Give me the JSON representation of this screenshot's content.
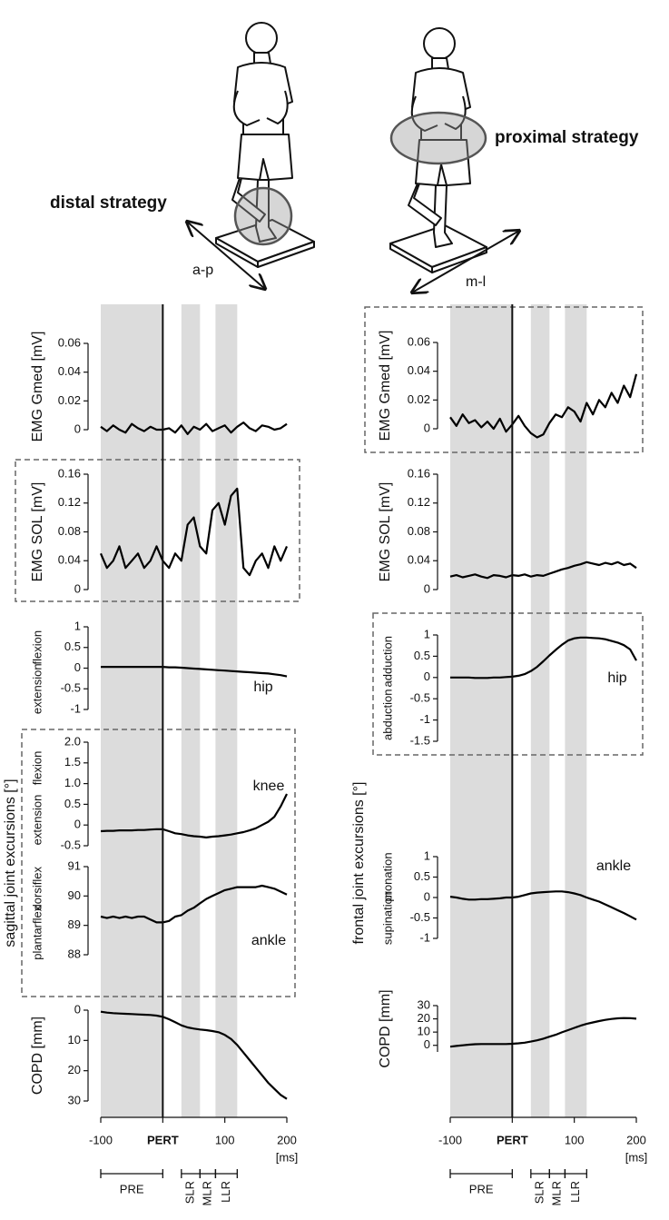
{
  "figure": {
    "left_strategy": "distal strategy",
    "left_direction": "a-p",
    "right_strategy": "proximal strategy",
    "right_direction": "m-l",
    "left_group": "sagittal joint excursions [°]",
    "right_group": "frontal joint excursions [°]",
    "phases": [
      {
        "label": "PRE",
        "range": [
          -100,
          0
        ],
        "shaded": true
      },
      {
        "label": "SLR",
        "range": [
          30,
          60
        ],
        "shaded": true
      },
      {
        "label": "MLR",
        "range": [
          60,
          85
        ],
        "shaded": false
      },
      {
        "label": "LLR",
        "range": [
          85,
          120
        ],
        "shaded": true
      }
    ]
  },
  "chart_data": [
    {
      "type": "line",
      "ylabel": "EMG Gmed [mV]",
      "color": "#000000",
      "x": [
        -100,
        -90,
        -80,
        -70,
        -60,
        -50,
        -40,
        -30,
        -20,
        -10,
        0,
        10,
        20,
        30,
        40,
        50,
        60,
        70,
        80,
        90,
        100,
        110,
        120,
        130,
        140,
        150,
        160,
        170,
        180,
        190,
        200
      ],
      "values": [
        0.002,
        -0.001,
        0.003,
        0.0,
        -0.002,
        0.004,
        0.001,
        -0.001,
        0.002,
        0.0,
        0.0,
        0.001,
        -0.002,
        0.003,
        -0.003,
        0.002,
        0.0,
        0.004,
        -0.001,
        0.001,
        0.003,
        -0.002,
        0.002,
        0.005,
        0.001,
        -0.001,
        0.003,
        0.002,
        0.0,
        0.001,
        0.004
      ],
      "xlim": [
        -100,
        200
      ],
      "ylim": [
        0,
        0.06
      ],
      "yticks": [
        0,
        0.02,
        0.04,
        0.06
      ]
    },
    {
      "type": "line",
      "ylabel": "EMG SOL [mV]",
      "color": "#000000",
      "x": [
        -100,
        -90,
        -80,
        -70,
        -60,
        -50,
        -40,
        -30,
        -20,
        -10,
        0,
        10,
        20,
        30,
        40,
        50,
        60,
        70,
        80,
        90,
        100,
        110,
        120,
        130,
        140,
        150,
        160,
        170,
        180,
        190,
        200
      ],
      "values": [
        0.05,
        0.03,
        0.04,
        0.06,
        0.03,
        0.04,
        0.05,
        0.03,
        0.04,
        0.06,
        0.04,
        0.03,
        0.05,
        0.04,
        0.09,
        0.1,
        0.06,
        0.05,
        0.11,
        0.12,
        0.09,
        0.13,
        0.14,
        0.03,
        0.02,
        0.04,
        0.05,
        0.03,
        0.06,
        0.04,
        0.06
      ],
      "xlim": [
        -100,
        200
      ],
      "ylim": [
        0,
        0.16
      ],
      "yticks": [
        0,
        0.04,
        0.08,
        0.12,
        0.16
      ]
    },
    {
      "type": "line",
      "annotation": "hip",
      "ylabel_upper": "flexion",
      "ylabel_lower": "extension",
      "color": "#000000",
      "x": [
        -100,
        -90,
        -80,
        -70,
        -60,
        -50,
        -40,
        -30,
        -20,
        -10,
        0,
        10,
        20,
        30,
        40,
        50,
        60,
        70,
        80,
        90,
        100,
        110,
        120,
        130,
        140,
        150,
        160,
        170,
        180,
        190,
        200
      ],
      "values": [
        0.03,
        0.03,
        0.03,
        0.03,
        0.03,
        0.03,
        0.03,
        0.03,
        0.03,
        0.03,
        0.03,
        0.02,
        0.02,
        0.01,
        0.0,
        -0.01,
        -0.02,
        -0.03,
        -0.04,
        -0.05,
        -0.06,
        -0.07,
        -0.08,
        -0.09,
        -0.1,
        -0.11,
        -0.12,
        -0.13,
        -0.15,
        -0.17,
        -0.2
      ],
      "xlim": [
        -100,
        200
      ],
      "ylim": [
        -1,
        1
      ],
      "yticks": [
        -1,
        -0.5,
        0,
        0.5,
        1
      ]
    },
    {
      "type": "line",
      "annotation": "knee",
      "ylabel_upper": "flexion",
      "ylabel_lower": "extension",
      "color": "#000000",
      "x": [
        -100,
        -90,
        -80,
        -70,
        -60,
        -50,
        -40,
        -30,
        -20,
        -10,
        0,
        10,
        20,
        30,
        40,
        50,
        60,
        70,
        80,
        90,
        100,
        110,
        120,
        130,
        140,
        150,
        160,
        170,
        180,
        190,
        200
      ],
      "values": [
        -0.15,
        -0.14,
        -0.14,
        -0.13,
        -0.13,
        -0.13,
        -0.12,
        -0.12,
        -0.11,
        -0.1,
        -0.1,
        -0.15,
        -0.2,
        -0.22,
        -0.25,
        -0.27,
        -0.28,
        -0.3,
        -0.28,
        -0.27,
        -0.25,
        -0.23,
        -0.2,
        -0.17,
        -0.13,
        -0.08,
        0.0,
        0.08,
        0.2,
        0.45,
        0.75
      ],
      "xlim": [
        -100,
        200
      ],
      "ylim": [
        -0.5,
        2
      ],
      "yticks": [
        -0.5,
        0,
        0.5,
        {
          "value": 1,
          "label": "1.0"
        },
        1.5,
        {
          "value": 2,
          "label": "2.0"
        }
      ]
    },
    {
      "type": "line",
      "annotation": "ankle",
      "ylabel_upper": "dorsiflex",
      "ylabel_lower": "plantarflex",
      "color": "#000000",
      "x": [
        -100,
        -90,
        -80,
        -70,
        -60,
        -50,
        -40,
        -30,
        -20,
        -10,
        0,
        10,
        20,
        30,
        40,
        50,
        60,
        70,
        80,
        90,
        100,
        110,
        120,
        130,
        140,
        150,
        160,
        170,
        180,
        190,
        200
      ],
      "values": [
        89.3,
        89.25,
        89.3,
        89.25,
        89.3,
        89.25,
        89.3,
        89.3,
        89.2,
        89.1,
        89.1,
        89.15,
        89.3,
        89.35,
        89.5,
        89.6,
        89.75,
        89.9,
        90.0,
        90.1,
        90.2,
        90.25,
        90.3,
        90.3,
        90.3,
        90.3,
        90.35,
        90.3,
        90.25,
        90.15,
        90.05
      ],
      "xlim": [
        -100,
        200
      ],
      "ylim": [
        88,
        91
      ],
      "yticks": [
        88,
        89,
        90,
        91
      ]
    },
    {
      "type": "line",
      "ylabel": "COPD [mm]",
      "color": "#000000",
      "x": [
        -100,
        -90,
        -80,
        -70,
        -60,
        -50,
        -40,
        -30,
        -20,
        -10,
        0,
        10,
        20,
        30,
        40,
        50,
        60,
        70,
        80,
        90,
        100,
        110,
        120,
        130,
        140,
        150,
        160,
        170,
        180,
        190,
        200
      ],
      "values": [
        0.5,
        0.8,
        1,
        1.1,
        1.2,
        1.3,
        1.4,
        1.5,
        1.6,
        1.8,
        2.2,
        3,
        4,
        5,
        5.7,
        6.1,
        6.4,
        6.6,
        6.9,
        7.3,
        8.2,
        9.5,
        11.5,
        14,
        16.5,
        19,
        21.5,
        24,
        26,
        28,
        29.3
      ],
      "xlim": [
        -100,
        200
      ],
      "ylim": [
        30,
        0
      ],
      "yticks": [
        0,
        10,
        20,
        30
      ],
      "xticks": [
        -100,
        {
          "value": 0,
          "label": "PERT"
        },
        100,
        200
      ],
      "xlabel": "[ms]"
    },
    {
      "type": "line",
      "ylabel": "EMG Gmed [mV]",
      "color": "#000000",
      "x": [
        -100,
        -90,
        -80,
        -70,
        -60,
        -50,
        -40,
        -30,
        -20,
        -10,
        0,
        10,
        20,
        30,
        40,
        50,
        60,
        70,
        80,
        90,
        100,
        110,
        120,
        130,
        140,
        150,
        160,
        170,
        180,
        190,
        200
      ],
      "values": [
        0.008,
        0.002,
        0.01,
        0.004,
        0.006,
        0.001,
        0.005,
        0.0,
        0.007,
        -0.002,
        0.003,
        0.009,
        0.002,
        -0.003,
        -0.006,
        -0.004,
        0.004,
        0.01,
        0.008,
        0.015,
        0.012,
        0.005,
        0.018,
        0.01,
        0.02,
        0.015,
        0.025,
        0.018,
        0.03,
        0.022,
        0.038
      ],
      "xlim": [
        -100,
        200
      ],
      "ylim": [
        0,
        0.06
      ],
      "yticks": [
        0,
        0.02,
        0.04,
        0.06
      ]
    },
    {
      "type": "line",
      "ylabel": "EMG SOL [mV]",
      "color": "#000000",
      "x": [
        -100,
        -90,
        -80,
        -70,
        -60,
        -50,
        -40,
        -30,
        -20,
        -10,
        0,
        10,
        20,
        30,
        40,
        50,
        60,
        70,
        80,
        90,
        100,
        110,
        120,
        130,
        140,
        150,
        160,
        170,
        180,
        190,
        200
      ],
      "values": [
        0.018,
        0.02,
        0.017,
        0.019,
        0.021,
        0.018,
        0.016,
        0.02,
        0.019,
        0.017,
        0.02,
        0.019,
        0.021,
        0.018,
        0.02,
        0.019,
        0.022,
        0.025,
        0.028,
        0.03,
        0.033,
        0.035,
        0.038,
        0.036,
        0.034,
        0.037,
        0.035,
        0.038,
        0.034,
        0.036,
        0.03
      ],
      "xlim": [
        -100,
        200
      ],
      "ylim": [
        0,
        0.16
      ],
      "yticks": [
        0,
        0.04,
        0.08,
        0.12,
        0.16
      ]
    },
    {
      "type": "line",
      "annotation": "hip",
      "ylabel_upper": "adduction",
      "ylabel_lower": "abduction",
      "color": "#000000",
      "x": [
        -100,
        -90,
        -80,
        -70,
        -60,
        -50,
        -40,
        -30,
        -20,
        -10,
        0,
        10,
        20,
        30,
        40,
        50,
        60,
        70,
        80,
        90,
        100,
        110,
        120,
        130,
        140,
        150,
        160,
        170,
        180,
        190,
        200
      ],
      "values": [
        0,
        0,
        0,
        0,
        -0.01,
        -0.01,
        -0.01,
        0,
        0,
        0.01,
        0.02,
        0.04,
        0.08,
        0.15,
        0.25,
        0.38,
        0.52,
        0.65,
        0.77,
        0.87,
        0.92,
        0.94,
        0.94,
        0.93,
        0.92,
        0.9,
        0.86,
        0.82,
        0.76,
        0.66,
        0.4
      ],
      "xlim": [
        -100,
        200
      ],
      "ylim": [
        -1.5,
        1
      ],
      "yticks": [
        -1.5,
        -1,
        -0.5,
        0,
        0.5,
        1
      ]
    },
    {
      "type": "line",
      "annotation": "ankle",
      "ylabel_upper": "pronation",
      "ylabel_lower": "supination",
      "color": "#000000",
      "x": [
        -100,
        -90,
        -80,
        -70,
        -60,
        -50,
        -40,
        -30,
        -20,
        -10,
        0,
        10,
        20,
        30,
        40,
        50,
        60,
        70,
        80,
        90,
        100,
        110,
        120,
        130,
        140,
        150,
        160,
        170,
        180,
        190,
        200
      ],
      "values": [
        0.02,
        0.0,
        -0.03,
        -0.05,
        -0.05,
        -0.04,
        -0.04,
        -0.03,
        -0.02,
        0,
        0,
        0.02,
        0.06,
        0.1,
        0.12,
        0.13,
        0.14,
        0.15,
        0.15,
        0.13,
        0.1,
        0.06,
        0,
        -0.05,
        -0.1,
        -0.17,
        -0.24,
        -0.31,
        -0.38,
        -0.46,
        -0.54
      ],
      "xlim": [
        -100,
        200
      ],
      "ylim": [
        -1,
        1
      ],
      "yticks": [
        -1,
        -0.5,
        0,
        0.5,
        1
      ]
    },
    {
      "type": "line",
      "ylabel": "COPD [mm]",
      "color": "#000000",
      "x": [
        -100,
        -90,
        -80,
        -70,
        -60,
        -50,
        -40,
        -30,
        -20,
        -10,
        0,
        10,
        20,
        30,
        40,
        50,
        60,
        70,
        80,
        90,
        100,
        110,
        120,
        130,
        140,
        150,
        160,
        170,
        180,
        190,
        200
      ],
      "values": [
        -1,
        -0.5,
        0,
        0.5,
        0.8,
        1,
        1,
        1,
        1,
        1,
        1.2,
        1.5,
        2,
        2.8,
        3.8,
        5,
        6.5,
        8,
        9.8,
        11.5,
        13.2,
        14.8,
        16.2,
        17.3,
        18.3,
        19.2,
        19.9,
        20.4,
        20.6,
        20.5,
        20.1
      ],
      "xlim": [
        -100,
        200
      ],
      "ylim": [
        -5,
        30
      ],
      "yticks": [
        0,
        10,
        20,
        30
      ],
      "xticks": [
        -100,
        {
          "value": 0,
          "label": "PERT"
        },
        100,
        200
      ],
      "xlabel": "[ms]"
    }
  ]
}
